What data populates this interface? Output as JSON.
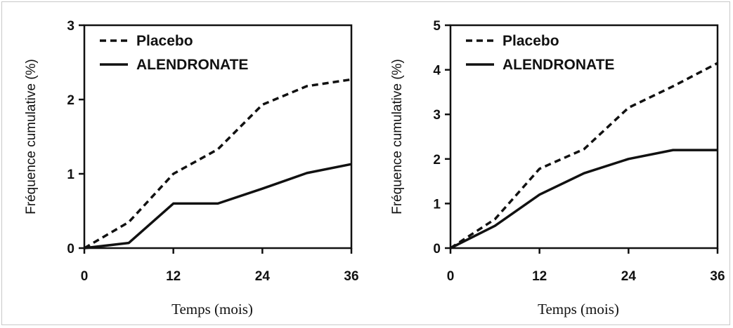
{
  "chart_data": [
    {
      "type": "line",
      "title": "",
      "xlabel": "Temps (mois)",
      "ylabel": "Fréquence cumulative (%)",
      "xlim": [
        0,
        36
      ],
      "ylim": [
        0,
        3
      ],
      "xticks": [
        "0",
        "12",
        "24",
        "36"
      ],
      "yticks": [
        "0",
        "1",
        "2",
        "3"
      ],
      "grid": false,
      "legend_position": "top-left",
      "x": [
        0,
        6,
        12,
        18,
        24,
        30,
        36
      ],
      "series": [
        {
          "name": "Placebo",
          "style": "dashed",
          "values": [
            0,
            0.35,
            1.0,
            1.33,
            1.93,
            2.18,
            2.27
          ]
        },
        {
          "name": "ALENDRONATE",
          "style": "solid",
          "values": [
            0,
            0.07,
            0.6,
            0.6,
            0.8,
            1.01,
            1.13
          ]
        }
      ]
    },
    {
      "type": "line",
      "title": "",
      "xlabel": "Temps (mois)",
      "ylabel": "Fréquence cumulative (%)",
      "xlim": [
        0,
        36
      ],
      "ylim": [
        0,
        5
      ],
      "xticks": [
        "0",
        "12",
        "24",
        "36"
      ],
      "yticks": [
        "0",
        "1",
        "2",
        "3",
        "4",
        "5"
      ],
      "grid": false,
      "legend_position": "top-left",
      "x": [
        0,
        6,
        12,
        18,
        24,
        30,
        36
      ],
      "series": [
        {
          "name": "Placebo",
          "style": "dashed",
          "values": [
            0,
            0.65,
            1.78,
            2.22,
            3.15,
            3.63,
            4.15
          ]
        },
        {
          "name": "ALENDRONATE",
          "style": "solid",
          "values": [
            0,
            0.5,
            1.2,
            1.68,
            2.0,
            2.2,
            2.2
          ]
        }
      ]
    }
  ]
}
